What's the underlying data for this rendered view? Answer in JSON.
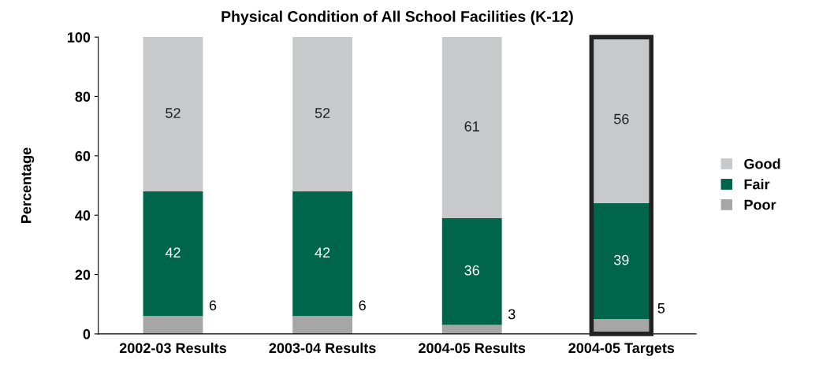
{
  "chart_data": {
    "type": "bar",
    "title": "Physical Condition of All School Facilities (K-12)",
    "ylabel": "Percentage",
    "categories": [
      "2002-03 Results",
      "2003-04 Results",
      "2004-05 Results",
      "2004-05 Targets"
    ],
    "stacked": true,
    "series": [
      {
        "name": "Poor",
        "color": "#a6a6a6",
        "values": [
          6,
          6,
          3,
          5
        ]
      },
      {
        "name": "Fair",
        "color": "#00664b",
        "values": [
          42,
          42,
          36,
          39
        ]
      },
      {
        "name": "Good",
        "color": "#c8c9cb",
        "values": [
          52,
          52,
          61,
          56
        ]
      }
    ],
    "ylim": [
      0,
      100
    ],
    "yticks": [
      0,
      20,
      40,
      60,
      80,
      100
    ],
    "grid": false,
    "legend": "right",
    "data_labels": true
  }
}
